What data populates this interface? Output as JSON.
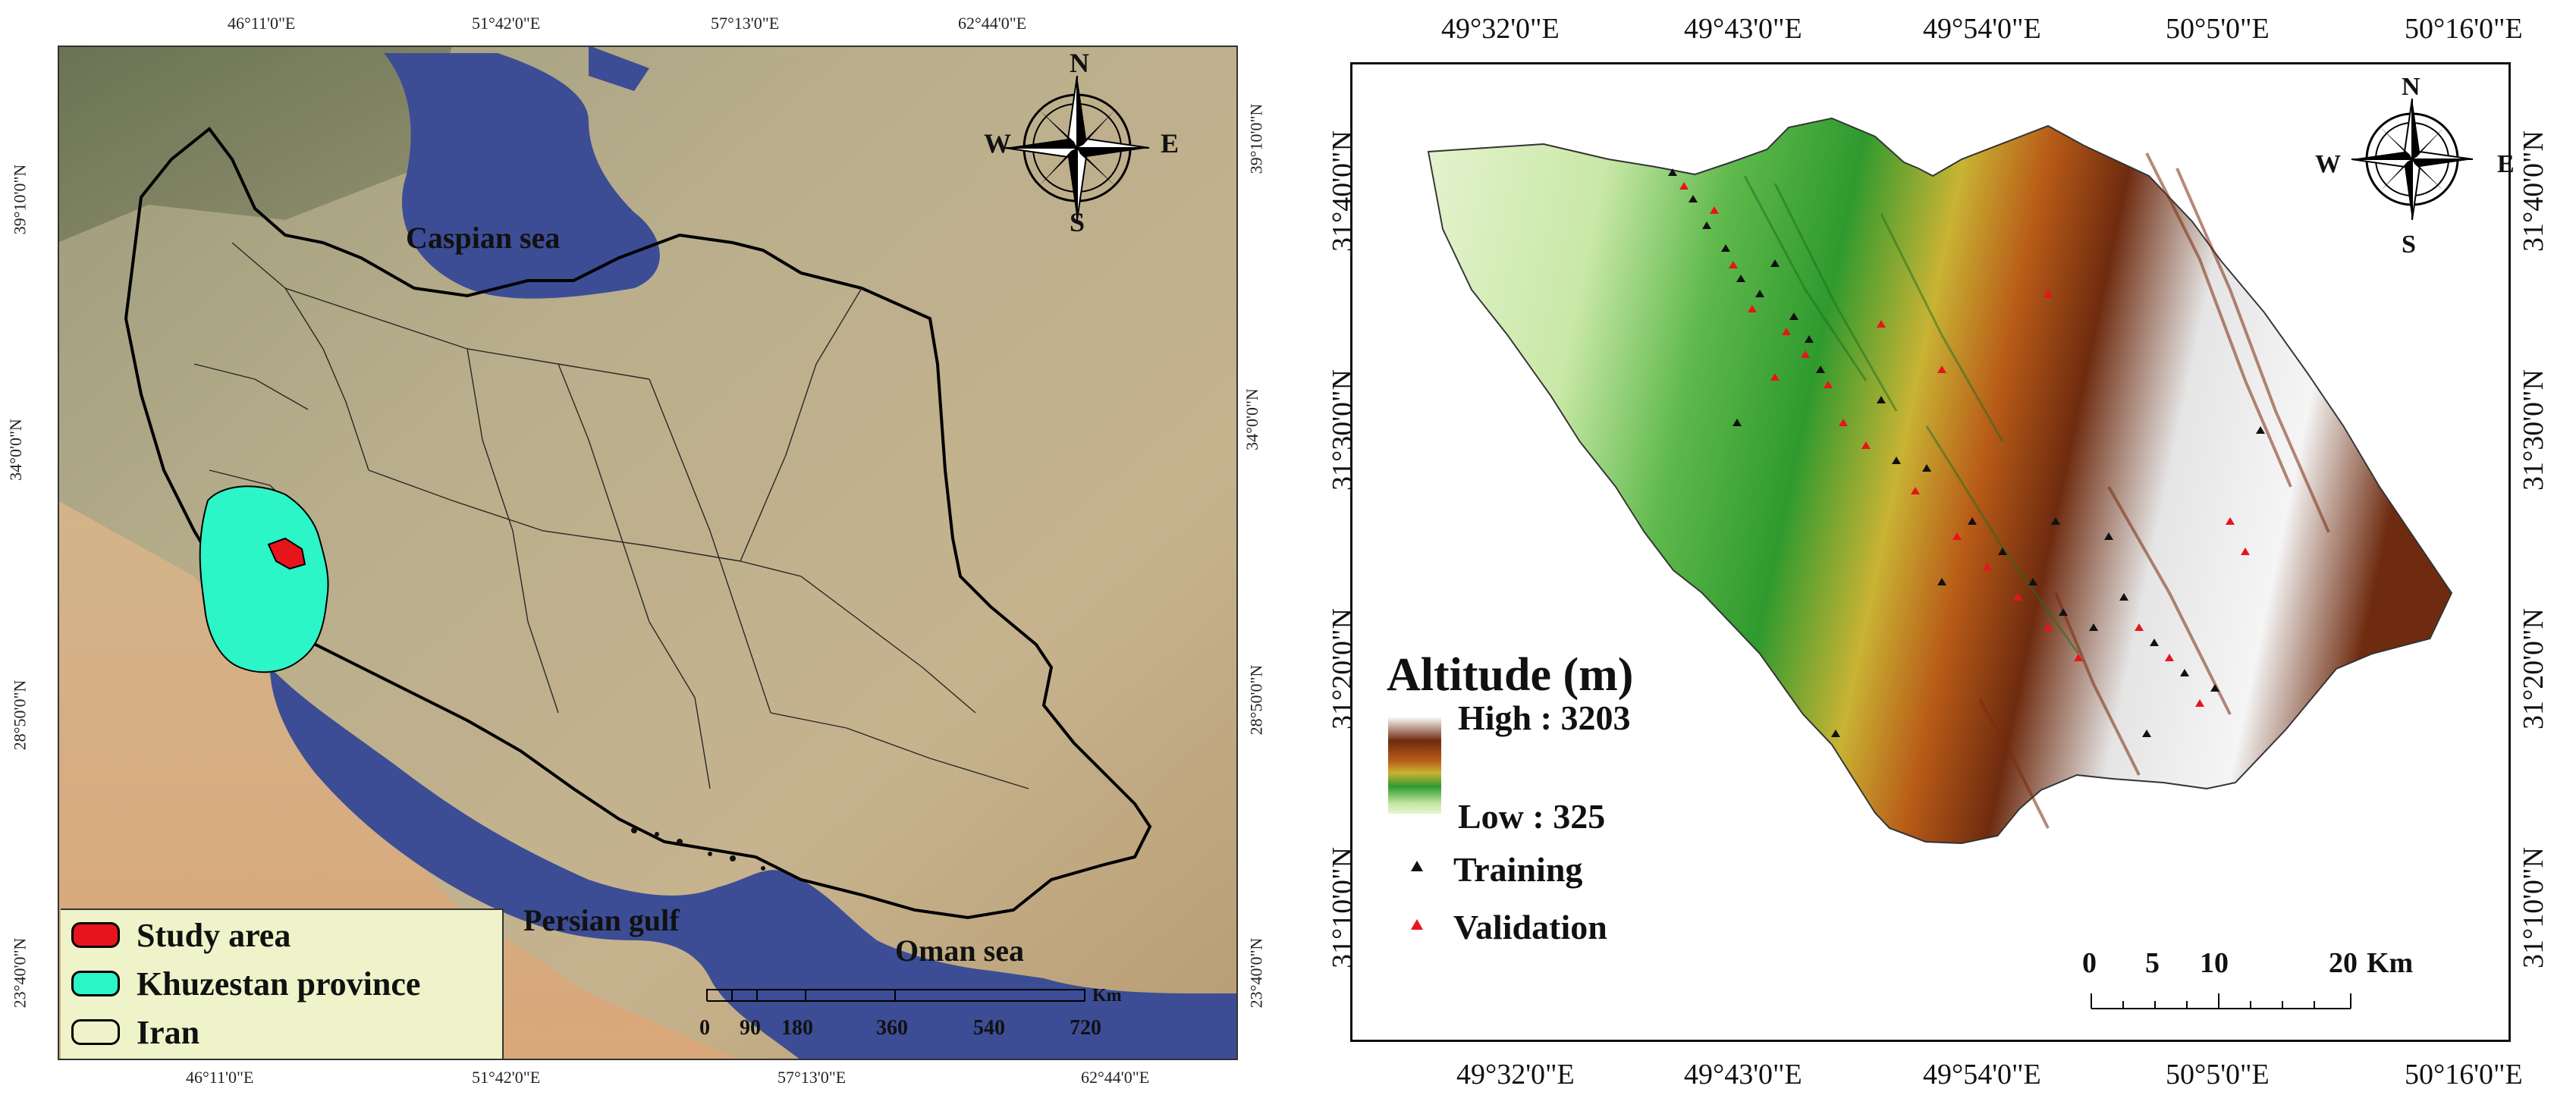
{
  "left_map": {
    "top_lon_labels": [
      "46°11'0\"E",
      "51°42'0\"E",
      "57°13'0\"E",
      "62°44'0\"E"
    ],
    "bottom_lon_labels": [
      "46°11'0\"E",
      "51°42'0\"E",
      "57°13'0\"E",
      "62°44'0\"E"
    ],
    "left_lat_labels": [
      "39°10'0\"N",
      "34°0'0\"N",
      "28°50'0\"N",
      "23°40'0\"N"
    ],
    "right_lat_labels": [
      "39°10'0\"N",
      "34°0'0\"N",
      "28°50'0\"N",
      "23°40'0\"N"
    ],
    "place_labels": {
      "caspian": "Caspian sea",
      "persian_gulf": "Persian gulf",
      "oman_sea": "Oman sea"
    },
    "north_arrow": {
      "n": "N",
      "s": "S",
      "e": "E",
      "w": "W"
    },
    "legend": [
      {
        "label": "Study area",
        "color": "#e8141c"
      },
      {
        "label": "Khuzestan province",
        "color": "#2cf5c7"
      },
      {
        "label": "Iran",
        "color": "#ffffff"
      }
    ],
    "scale_bar": {
      "ticks": [
        "0",
        "90",
        "180",
        "360",
        "540",
        "720"
      ],
      "unit": "Km"
    }
  },
  "right_map": {
    "top_lon_labels": [
      "49°32'0\"E",
      "49°43'0\"E",
      "49°54'0\"E",
      "50°5'0\"E",
      "50°16'0\"E"
    ],
    "bottom_lon_labels": [
      "49°32'0\"E",
      "49°43'0\"E",
      "49°54'0\"E",
      "50°5'0\"E",
      "50°16'0\"E"
    ],
    "left_lat_labels": [
      "31°40'0\"N",
      "31°30'0\"N",
      "31°20'0\"N",
      "31°10'0\"N"
    ],
    "right_lat_labels": [
      "31°40'0\"N",
      "31°30'0\"N",
      "31°20'0\"N",
      "31°10'0\"N"
    ],
    "north_arrow": {
      "n": "N",
      "s": "S",
      "e": "E",
      "w": "W"
    },
    "legend": {
      "title": "Altitude (m)",
      "high": "High : 3203",
      "low": "Low : 325",
      "training": "Training",
      "validation": "Validation",
      "training_color": "#111111",
      "validation_color": "#e8141c"
    },
    "scale_bar": {
      "ticks": [
        "0",
        "5",
        "10",
        "20"
      ],
      "unit": "Km"
    }
  }
}
